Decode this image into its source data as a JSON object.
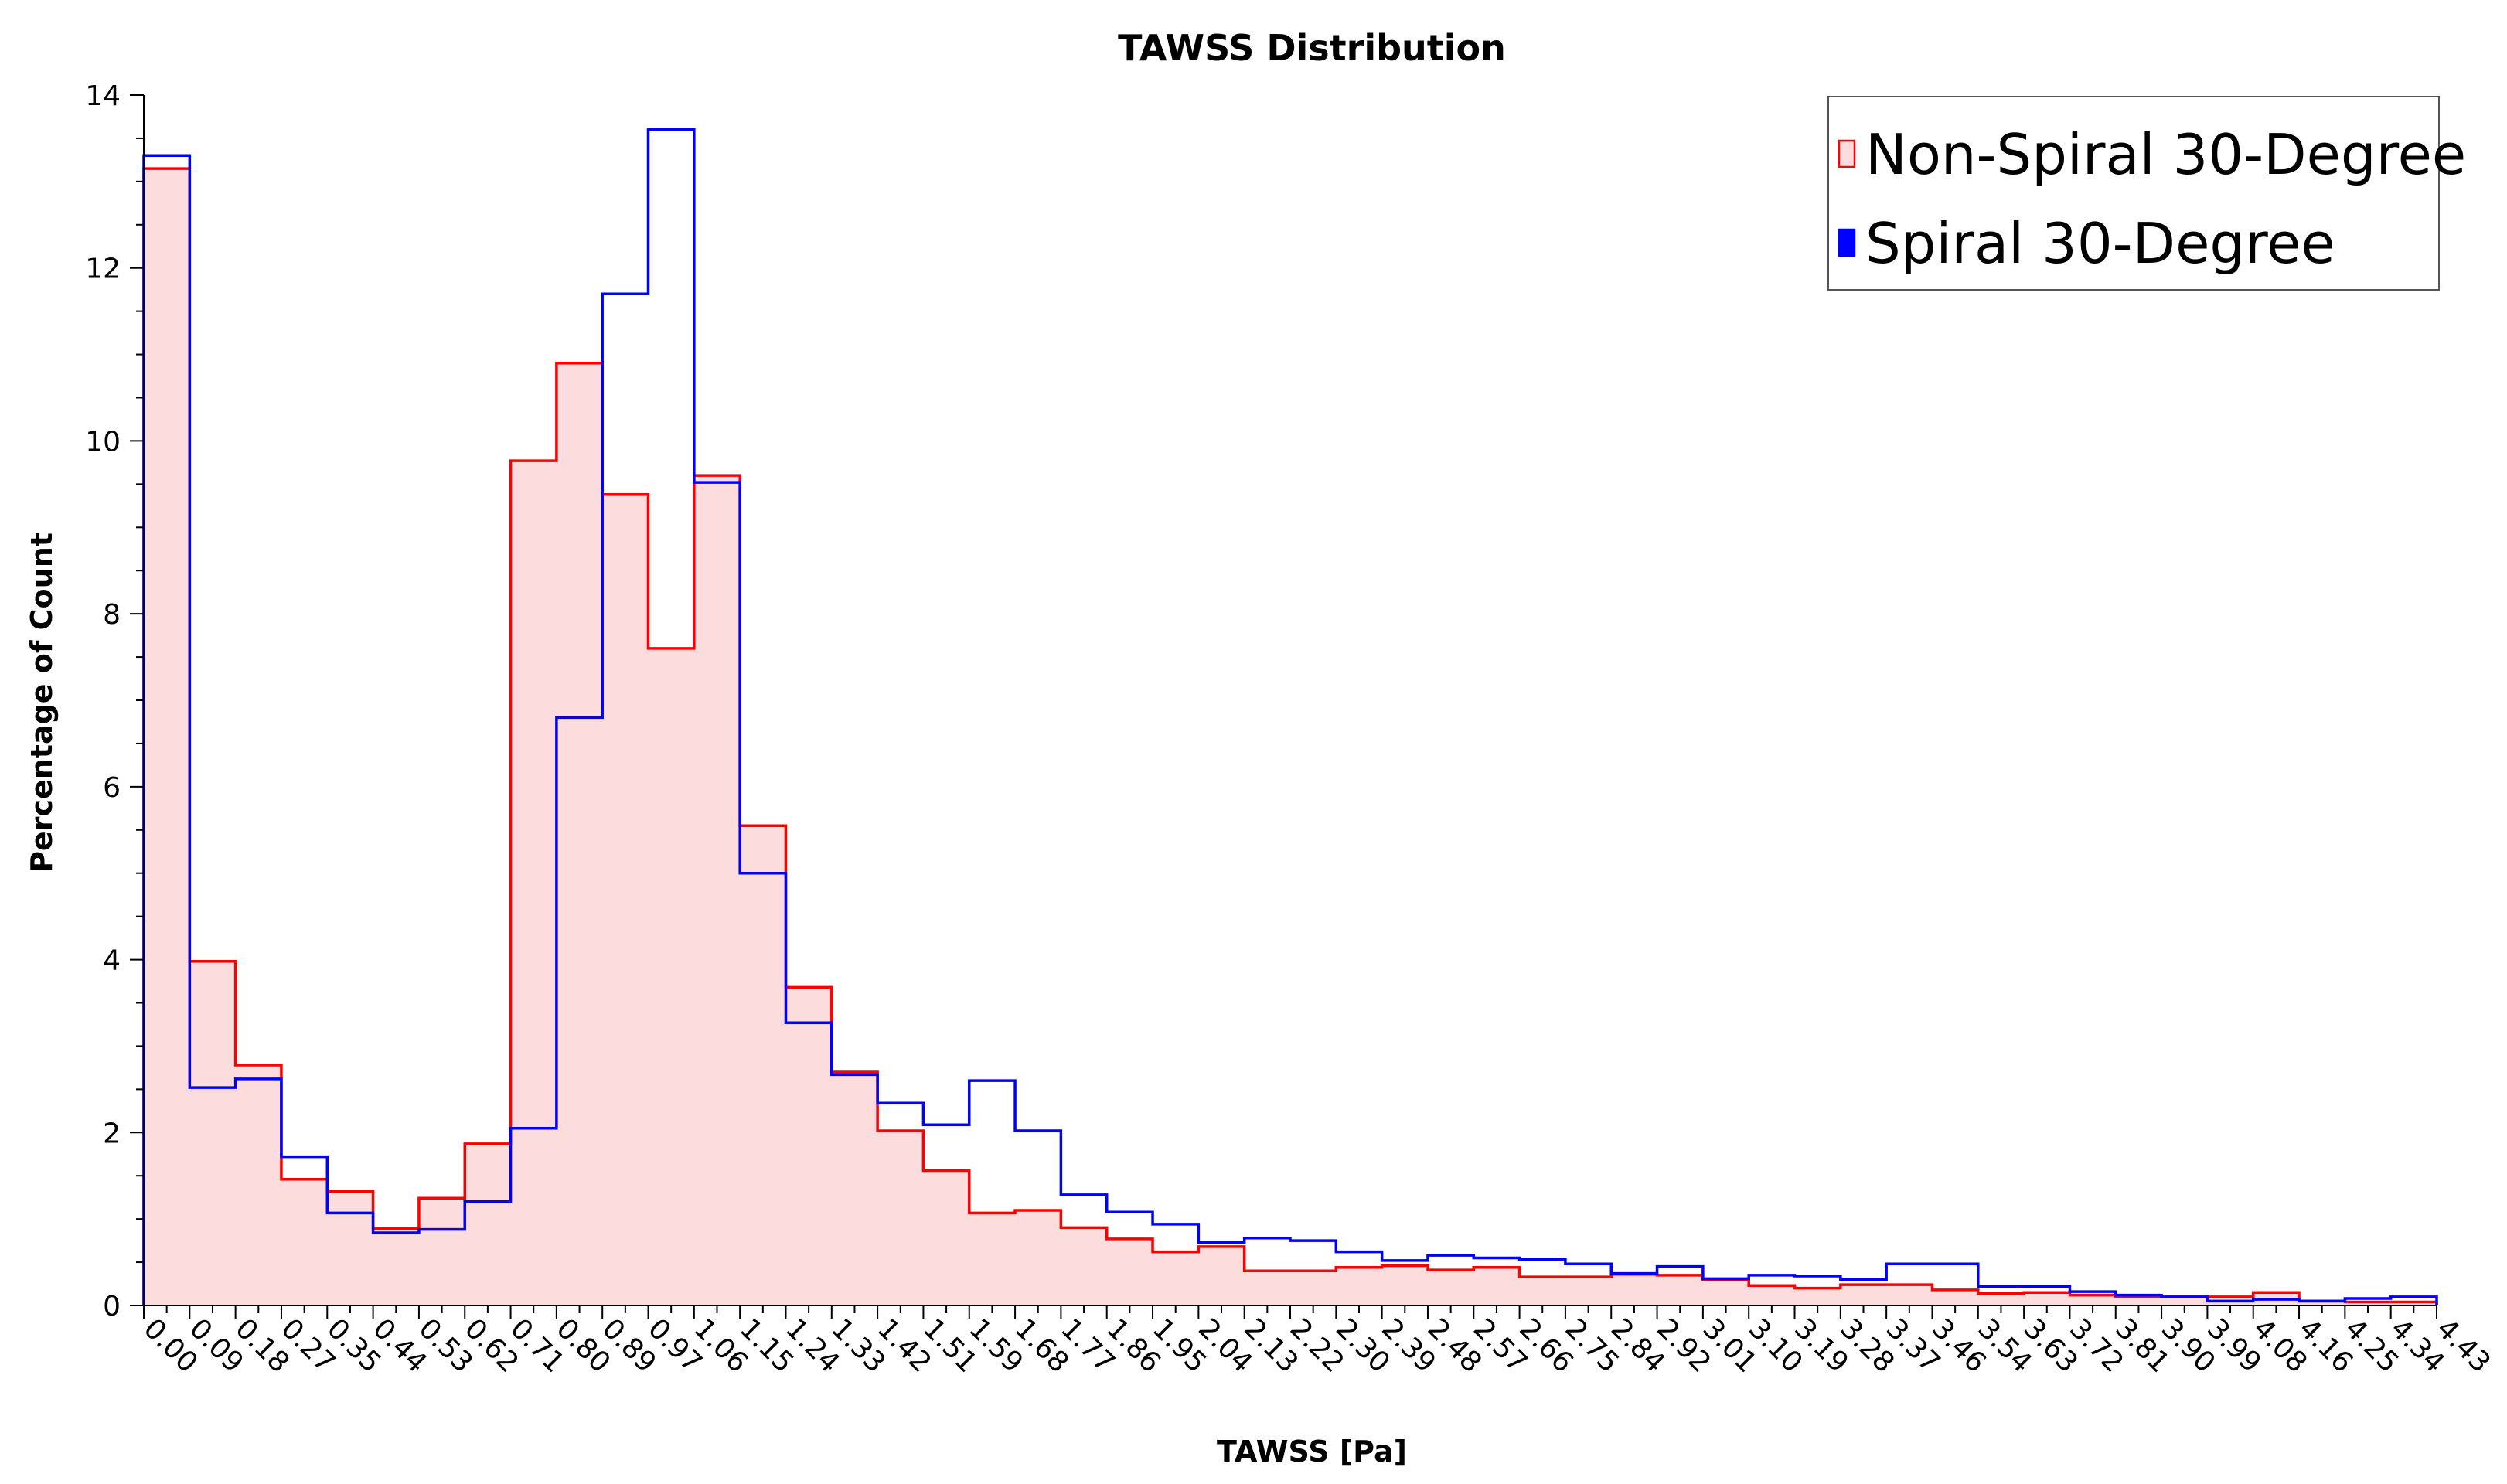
{
  "chart_data": {
    "type": "histogram",
    "title": "TAWSS Distribution",
    "xlabel": "TAWSS [Pa]",
    "ylabel": "Percentage of Count",
    "ylim": [
      0,
      14
    ],
    "yticks": [
      "0",
      "2",
      "4",
      "6",
      "8",
      "10",
      "12",
      "14"
    ],
    "bin_edges": [
      "0.00",
      "0.09",
      "0.18",
      "0.27",
      "0.35",
      "0.44",
      "0.53",
      "0.62",
      "0.71",
      "0.80",
      "0.89",
      "0.97",
      "1.06",
      "1.15",
      "1.24",
      "1.33",
      "1.42",
      "1.51",
      "1.59",
      "1.68",
      "1.77",
      "1.86",
      "1.95",
      "2.04",
      "2.13",
      "2.22",
      "2.30",
      "2.39",
      "2.48",
      "2.57",
      "2.66",
      "2.75",
      "2.84",
      "2.92",
      "3.01",
      "3.10",
      "3.19",
      "3.28",
      "3.37",
      "3.46",
      "3.54",
      "3.63",
      "3.72",
      "3.81",
      "3.90",
      "3.99",
      "4.08",
      "4.16",
      "4.25",
      "4.34",
      "4.43"
    ],
    "series": [
      {
        "name": "Non-Spiral 30-Degree",
        "color": "#ff0000",
        "fill": "#fcdcdc",
        "values": [
          13.15,
          3.98,
          2.78,
          1.46,
          1.32,
          0.89,
          1.24,
          1.87,
          9.77,
          10.9,
          9.38,
          7.6,
          9.6,
          5.55,
          3.68,
          2.7,
          2.02,
          1.56,
          1.07,
          1.1,
          0.9,
          0.77,
          0.62,
          0.68,
          0.4,
          0.4,
          0.44,
          0.46,
          0.41,
          0.44,
          0.33,
          0.33,
          0.36,
          0.35,
          0.3,
          0.23,
          0.2,
          0.24,
          0.24,
          0.18,
          0.14,
          0.15,
          0.12,
          0.1,
          0.1,
          0.1,
          0.15,
          0.05,
          0.04,
          0.04
        ]
      },
      {
        "name": "Spiral 30-Degree",
        "color": "#0000ff",
        "fill": "none",
        "values": [
          13.3,
          2.52,
          2.62,
          1.72,
          1.07,
          0.84,
          0.88,
          1.2,
          2.05,
          6.8,
          11.7,
          13.6,
          9.52,
          5.0,
          3.27,
          2.67,
          2.34,
          2.09,
          2.6,
          2.02,
          1.28,
          1.08,
          0.94,
          0.73,
          0.78,
          0.75,
          0.62,
          0.52,
          0.58,
          0.55,
          0.53,
          0.48,
          0.37,
          0.45,
          0.31,
          0.35,
          0.34,
          0.3,
          0.48,
          0.48,
          0.22,
          0.22,
          0.16,
          0.12,
          0.1,
          0.05,
          0.07,
          0.05,
          0.08,
          0.1
        ]
      }
    ],
    "legend": {
      "position": "top-right",
      "entries": [
        "Non-Spiral 30-Degree",
        "Spiral 30-Degree"
      ]
    }
  }
}
